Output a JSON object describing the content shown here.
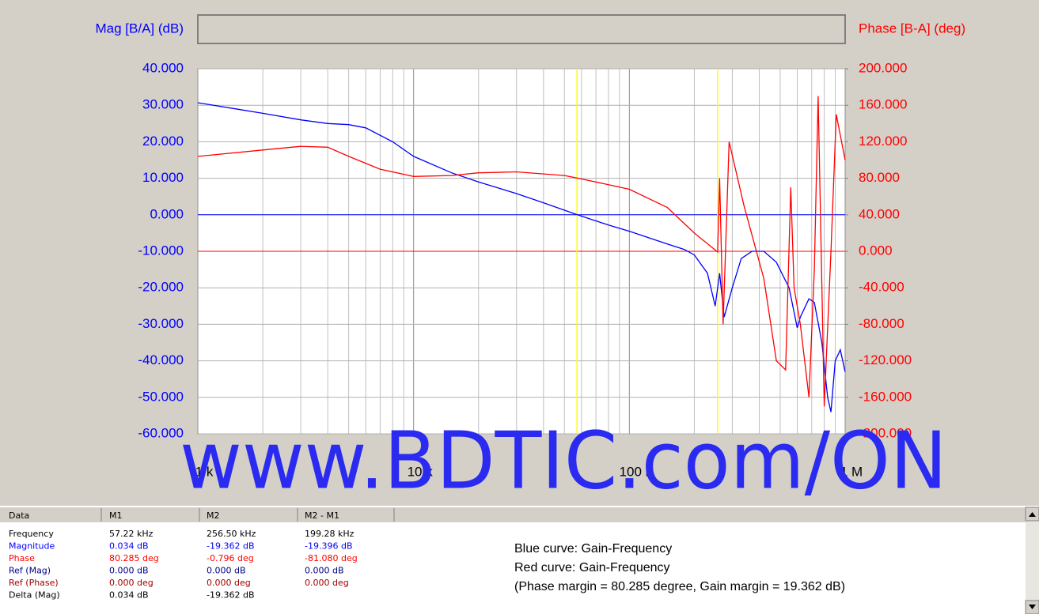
{
  "chart_data": {
    "type": "line",
    "ylabel": "Mag [B/A] (dB)",
    "y2label": "Phase [B-A] (deg)",
    "xscale": "log",
    "grid": true,
    "xlim": [
      1000,
      1000000
    ],
    "xticks": [
      {
        "value": 1000,
        "label": "1 k"
      },
      {
        "value": 10000,
        "label": "10 k"
      },
      {
        "value": 100000,
        "label": "100 k"
      },
      {
        "value": 1000000,
        "label": "1 M"
      }
    ],
    "ylim": [
      -60,
      40
    ],
    "yticks": [
      {
        "value": 40,
        "label": "40.000"
      },
      {
        "value": 30,
        "label": "30.000"
      },
      {
        "value": 20,
        "label": "20.000"
      },
      {
        "value": 10,
        "label": "10.000"
      },
      {
        "value": 0,
        "label": "0.000"
      },
      {
        "value": -10,
        "label": "-10.000"
      },
      {
        "value": -20,
        "label": "-20.000"
      },
      {
        "value": -30,
        "label": "-30.000"
      },
      {
        "value": -40,
        "label": "-40.000"
      },
      {
        "value": -50,
        "label": "-50.000"
      },
      {
        "value": -60,
        "label": "-60.000"
      }
    ],
    "y2lim": [
      -200,
      200
    ],
    "y2ticks": [
      {
        "value": 200,
        "label": "200.000"
      },
      {
        "value": 160,
        "label": "160.000"
      },
      {
        "value": 120,
        "label": "120.000"
      },
      {
        "value": 80,
        "label": "80.000"
      },
      {
        "value": 40,
        "label": "40.000"
      },
      {
        "value": 0,
        "label": "0.000"
      },
      {
        "value": -40,
        "label": "-40.000"
      },
      {
        "value": -80,
        "label": "-80.000"
      },
      {
        "value": -120,
        "label": "-120.000"
      },
      {
        "value": -160,
        "label": "-160.000"
      },
      {
        "value": -200,
        "label": "-200.000"
      }
    ],
    "markers": [
      57220,
      256500
    ],
    "marker_color": "#ffff00",
    "ref_mag": 0,
    "ref_phase": 0,
    "series": [
      {
        "color": "#0000ff",
        "x": [
          1000,
          1500,
          2000,
          3000,
          4000,
          5000,
          6000,
          8000,
          10000,
          15000,
          20000,
          30000,
          40000,
          57220,
          80000,
          100000,
          150000,
          180000,
          200000,
          230000,
          250000,
          262000,
          275000,
          300000,
          330000,
          370000,
          420000,
          480000,
          550000,
          600000,
          620000,
          680000,
          720000,
          780000,
          830000,
          860000,
          900000,
          950000,
          1000000
        ],
        "values": [
          30.7,
          29,
          27.8,
          26,
          25,
          24.7,
          23.8,
          20,
          16,
          11.5,
          9,
          5.8,
          3.3,
          0.034,
          -2.8,
          -4.5,
          -8,
          -9.5,
          -11,
          -16,
          -25,
          -16,
          -28,
          -20,
          -12,
          -10,
          -10,
          -13,
          -20,
          -31,
          -28,
          -23,
          -24,
          -35,
          -50,
          -54,
          -40,
          -37,
          -43
        ]
      },
      {
        "color": "#ff0000",
        "axis": "y2",
        "x": [
          1000,
          2000,
          3000,
          4000,
          5000,
          7000,
          10000,
          15000,
          20000,
          30000,
          50000,
          57220,
          80000,
          100000,
          150000,
          200000,
          256500,
          262000,
          272000,
          290000,
          340000,
          420000,
          480000,
          530000,
          560000,
          580000,
          620000,
          680000,
          720000,
          750000,
          800000,
          860000,
          910000,
          1000000
        ],
        "values": [
          104,
          111,
          115,
          114,
          104,
          90,
          82,
          83,
          86,
          87,
          83,
          80.285,
          73,
          68,
          48,
          20,
          -0.796,
          80,
          -80,
          120,
          50,
          -30,
          -120,
          -130,
          70,
          -40,
          -80,
          -160,
          -20,
          170,
          -170,
          0,
          150,
          100
        ]
      }
    ]
  },
  "watermark": "www.BDTIC.com/ON",
  "table": {
    "header": [
      "Data",
      "M1",
      "M2",
      "M2 - M1"
    ],
    "rows": [
      [
        "Frequency",
        "57.22 kHz",
        "256.50 kHz",
        "199.28 kHz"
      ],
      [
        "Magnitude",
        "0.034 dB",
        "-19.362 dB",
        "-19.396 dB"
      ],
      [
        "Phase",
        "80.285 deg",
        "-0.796 deg",
        "-81.080 deg"
      ],
      [
        "Ref (Mag)",
        "0.000 dB",
        "0.000 dB",
        "0.000 dB"
      ],
      [
        "Ref (Phase)",
        "0.000 deg",
        "0.000 deg",
        "0.000 deg"
      ],
      [
        "Delta (Mag)",
        "0.034 dB",
        "-19.362 dB"
      ]
    ]
  },
  "notes": [
    "Blue curve: Gain-Frequency",
    "Red curve: Gain-Frequency",
    "(Phase margin = 80.285 degree, Gain margin = 19.362 dB)"
  ]
}
